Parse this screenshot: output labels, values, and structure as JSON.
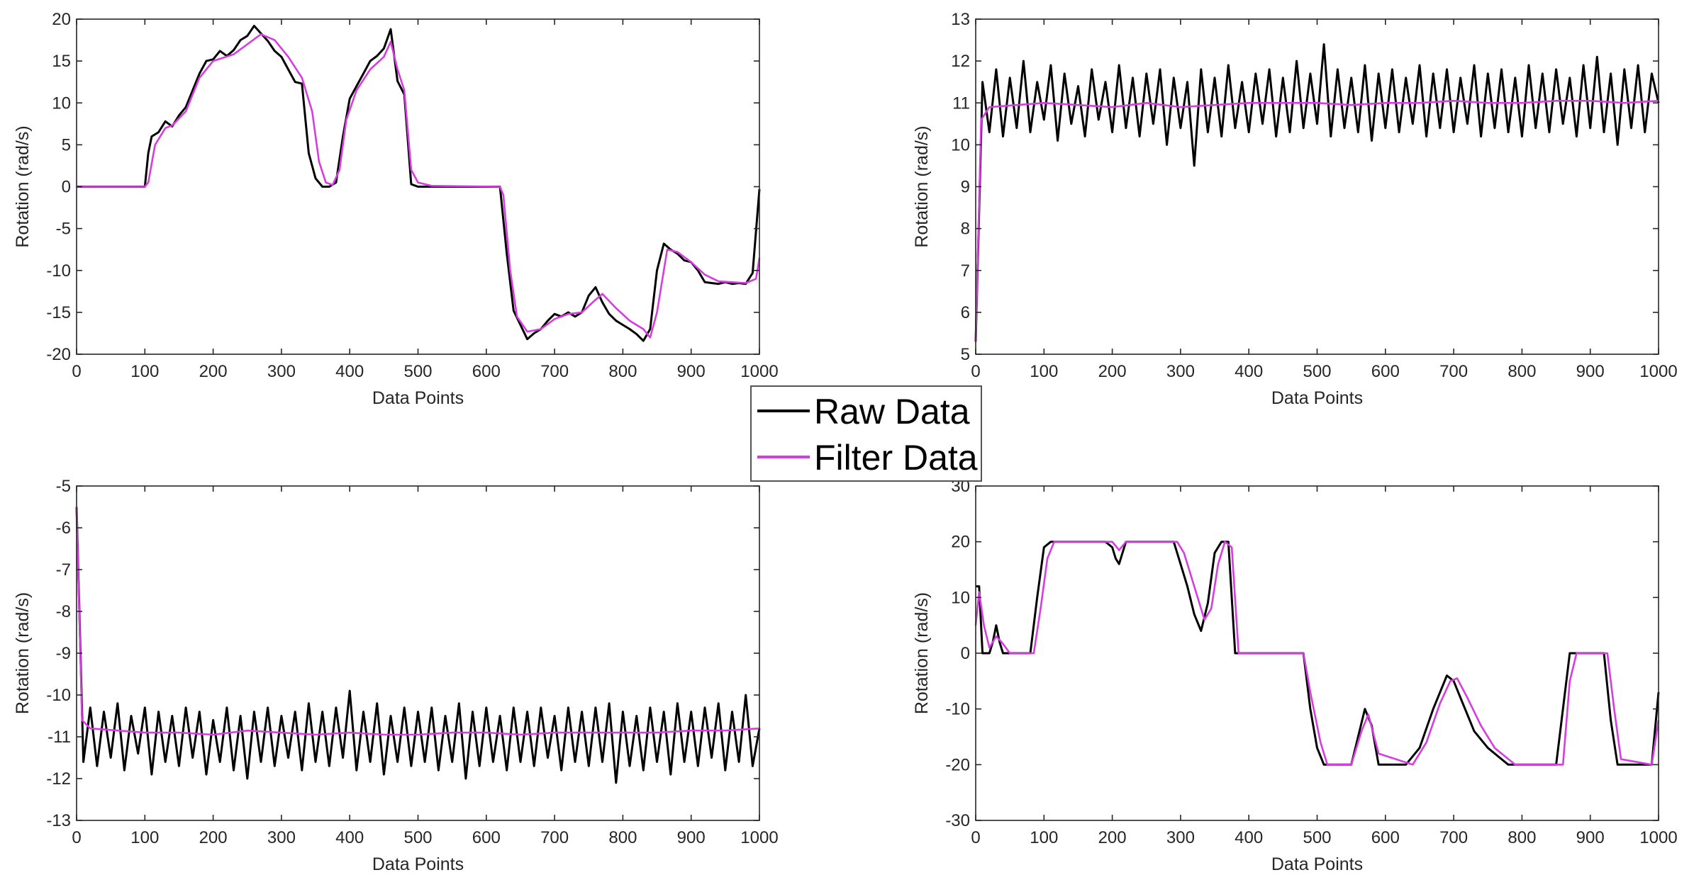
{
  "legend": {
    "entries": [
      {
        "label": "Raw Data",
        "color": "#000000"
      },
      {
        "label": "Filter Data",
        "color": "#d63ce0"
      }
    ],
    "placement": "center"
  },
  "chart_data": [
    {
      "type": "line",
      "xlabel": "Data Points",
      "ylabel": "Rotation (rad/s)",
      "xlim": [
        0,
        1000
      ],
      "ylim": [
        -20,
        20
      ],
      "xticks": [
        "0",
        "100",
        "200",
        "300",
        "400",
        "500",
        "600",
        "700",
        "800",
        "900",
        "1000"
      ],
      "yticks": [
        "-20",
        "-15",
        "-10",
        "-5",
        "0",
        "5",
        "10",
        "15",
        "20"
      ],
      "grid": false,
      "series": [
        {
          "name": "Raw Data",
          "color": "#000000",
          "x": [
            0,
            100,
            105,
            110,
            120,
            130,
            140,
            150,
            160,
            170,
            180,
            190,
            200,
            210,
            220,
            230,
            240,
            250,
            260,
            270,
            280,
            290,
            300,
            310,
            320,
            330,
            340,
            350,
            360,
            370,
            380,
            390,
            400,
            410,
            420,
            430,
            440,
            450,
            460,
            470,
            480,
            490,
            500,
            620,
            630,
            640,
            650,
            660,
            670,
            680,
            690,
            700,
            710,
            720,
            730,
            740,
            750,
            760,
            770,
            780,
            790,
            800,
            810,
            820,
            830,
            840,
            850,
            860,
            870,
            880,
            890,
            900,
            910,
            920,
            930,
            940,
            950,
            960,
            970,
            980,
            990,
            1000
          ],
          "y": [
            0,
            0,
            4,
            6,
            6.5,
            7.8,
            7.2,
            8.5,
            9.5,
            11.5,
            13.5,
            15,
            15.2,
            16.2,
            15.6,
            16.3,
            17.5,
            18,
            19.2,
            18.3,
            17.4,
            16.2,
            15.5,
            14,
            12.5,
            12.3,
            4,
            1,
            0,
            0,
            0.5,
            6,
            10.5,
            12,
            13.5,
            15,
            15.6,
            16.5,
            18.8,
            12.6,
            11,
            0.3,
            0,
            0,
            -8,
            -14.8,
            -16.5,
            -18.2,
            -17.5,
            -17,
            -16,
            -15.2,
            -15.5,
            -15,
            -15.5,
            -15,
            -13,
            -12,
            -13.8,
            -15.2,
            -16,
            -16.5,
            -17,
            -17.6,
            -18.4,
            -17,
            -10,
            -6.8,
            -7.5,
            -8,
            -8.8,
            -9,
            -10,
            -11.4,
            -11.5,
            -11.6,
            -11.4,
            -11.6,
            -11.5,
            -11.6,
            -10.3,
            -0.3
          ]
        },
        {
          "name": "Filter Data",
          "color": "#d63ce0",
          "x": [
            0,
            100,
            105,
            115,
            130,
            140,
            160,
            180,
            200,
            230,
            250,
            270,
            290,
            310,
            330,
            345,
            355,
            365,
            375,
            385,
            395,
            410,
            430,
            450,
            460,
            470,
            480,
            490,
            500,
            520,
            620,
            625,
            635,
            645,
            660,
            680,
            700,
            720,
            740,
            760,
            770,
            790,
            810,
            830,
            840,
            850,
            865,
            880,
            900,
            920,
            940,
            960,
            980,
            995,
            1000
          ],
          "y": [
            0,
            0,
            0.5,
            5,
            7,
            7.3,
            9,
            13,
            15,
            15.8,
            17,
            18.2,
            17.5,
            15.5,
            13,
            9,
            3,
            0.5,
            0.2,
            2,
            8,
            11.5,
            14,
            15.5,
            17.3,
            14,
            11.5,
            2,
            0.5,
            0.1,
            0,
            -1,
            -10,
            -15.5,
            -17.3,
            -17,
            -15.8,
            -15.2,
            -15,
            -13.5,
            -12.8,
            -14.5,
            -16,
            -17,
            -18,
            -15,
            -7.5,
            -7.8,
            -9,
            -10.5,
            -11.3,
            -11.4,
            -11.5,
            -11,
            -8.5
          ]
        }
      ]
    },
    {
      "type": "line",
      "xlabel": "Data Points",
      "ylabel": "Rotation (rad/s)",
      "xlim": [
        0,
        1000
      ],
      "ylim": [
        5,
        13
      ],
      "xticks": [
        "0",
        "100",
        "200",
        "300",
        "400",
        "500",
        "600",
        "700",
        "800",
        "900",
        "1000"
      ],
      "yticks": [
        "5",
        "6",
        "7",
        "8",
        "9",
        "10",
        "11",
        "12",
        "13"
      ],
      "grid": false,
      "series": [
        {
          "name": "Raw Data",
          "color": "#000000",
          "x_range": [
            0,
            1000
          ],
          "y": [
            5.3,
            11.5,
            10.3,
            11.8,
            10.2,
            11.6,
            10.4,
            12.0,
            10.3,
            11.5,
            10.6,
            11.9,
            10.1,
            11.7,
            10.5,
            11.4,
            10.2,
            11.8,
            10.6,
            11.5,
            10.3,
            11.9,
            10.4,
            11.6,
            10.2,
            11.7,
            10.5,
            11.8,
            10.0,
            11.6,
            10.4,
            11.5,
            9.5,
            11.8,
            10.3,
            11.6,
            10.2,
            11.9,
            10.4,
            11.5,
            10.3,
            11.7,
            10.5,
            11.8,
            10.2,
            11.6,
            10.3,
            12.0,
            10.4,
            11.7,
            10.5,
            12.4,
            10.2,
            11.8,
            10.4,
            11.6,
            10.3,
            11.9,
            10.1,
            11.7,
            10.4,
            11.8,
            10.3,
            11.6,
            10.5,
            11.9,
            10.2,
            11.7,
            10.4,
            11.8,
            10.3,
            11.6,
            10.5,
            11.9,
            10.2,
            11.7,
            10.4,
            11.8,
            10.3,
            11.6,
            10.2,
            11.9,
            10.4,
            11.7,
            10.3,
            11.8,
            10.5,
            11.6,
            10.2,
            11.9,
            10.4,
            12.1,
            10.3,
            11.7,
            10.0,
            11.8,
            10.4,
            11.9,
            10.3,
            11.7,
            11.0
          ]
        },
        {
          "name": "Filter Data",
          "color": "#d63ce0",
          "x": [
            0,
            8,
            20,
            100,
            150,
            200,
            250,
            300,
            350,
            400,
            450,
            500,
            550,
            600,
            650,
            700,
            750,
            800,
            850,
            900,
            950,
            1000
          ],
          "y": [
            5.3,
            10.6,
            10.9,
            11.0,
            10.95,
            10.9,
            11.0,
            10.9,
            10.95,
            11.0,
            11.0,
            11.0,
            10.95,
            11.0,
            11.0,
            11.05,
            11.0,
            11.0,
            11.05,
            11.05,
            11.0,
            11.05
          ]
        }
      ]
    },
    {
      "type": "line",
      "xlabel": "Data Points",
      "ylabel": "Rotation (rad/s)",
      "xlim": [
        0,
        1000
      ],
      "ylim": [
        -13,
        -5
      ],
      "xticks": [
        "0",
        "100",
        "200",
        "300",
        "400",
        "500",
        "600",
        "700",
        "800",
        "900",
        "1000"
      ],
      "yticks": [
        "-13",
        "-12",
        "-11",
        "-10",
        "-9",
        "-8",
        "-7",
        "-6",
        "-5"
      ],
      "grid": false,
      "series": [
        {
          "name": "Raw Data",
          "color": "#000000",
          "x_range": [
            0,
            1000
          ],
          "y": [
            -5.5,
            -11.6,
            -10.3,
            -11.7,
            -10.4,
            -11.5,
            -10.2,
            -11.8,
            -10.5,
            -11.4,
            -10.3,
            -11.9,
            -10.4,
            -11.6,
            -10.5,
            -11.7,
            -10.3,
            -11.5,
            -10.4,
            -11.9,
            -10.6,
            -11.6,
            -10.3,
            -11.8,
            -10.5,
            -12.0,
            -10.4,
            -11.6,
            -10.3,
            -11.7,
            -10.5,
            -11.5,
            -10.4,
            -11.8,
            -10.2,
            -11.6,
            -10.4,
            -11.7,
            -10.3,
            -11.5,
            -9.9,
            -11.8,
            -10.4,
            -11.6,
            -10.2,
            -11.9,
            -10.5,
            -11.6,
            -10.3,
            -11.7,
            -10.4,
            -11.6,
            -10.3,
            -11.8,
            -10.5,
            -11.6,
            -10.2,
            -12.0,
            -10.4,
            -11.7,
            -10.3,
            -11.6,
            -10.5,
            -11.8,
            -10.3,
            -11.6,
            -10.4,
            -11.7,
            -10.3,
            -11.5,
            -10.5,
            -11.8,
            -10.3,
            -11.6,
            -10.4,
            -11.7,
            -10.3,
            -11.6,
            -10.2,
            -12.1,
            -10.4,
            -11.7,
            -10.5,
            -11.8,
            -10.3,
            -11.6,
            -10.4,
            -11.9,
            -10.2,
            -11.6,
            -10.4,
            -11.7,
            -10.3,
            -11.5,
            -10.2,
            -11.8,
            -10.4,
            -11.6,
            -10.0,
            -11.7,
            -10.8
          ]
        },
        {
          "name": "Filter Data",
          "color": "#d63ce0",
          "x": [
            0,
            8,
            20,
            100,
            150,
            200,
            250,
            300,
            350,
            400,
            450,
            500,
            550,
            600,
            650,
            700,
            750,
            800,
            850,
            900,
            950,
            1000
          ],
          "y": [
            -5.5,
            -10.6,
            -10.8,
            -10.9,
            -10.9,
            -10.95,
            -10.85,
            -10.9,
            -10.95,
            -10.9,
            -10.95,
            -10.95,
            -10.9,
            -10.9,
            -10.95,
            -10.9,
            -10.9,
            -10.9,
            -10.9,
            -10.85,
            -10.85,
            -10.8
          ]
        }
      ]
    },
    {
      "type": "line",
      "xlabel": "Data Points",
      "ylabel": "Rotation (rad/s)",
      "xlim": [
        0,
        1000
      ],
      "ylim": [
        -30,
        30
      ],
      "xticks": [
        "0",
        "100",
        "200",
        "300",
        "400",
        "500",
        "600",
        "700",
        "800",
        "900",
        "1000"
      ],
      "yticks": [
        "-30",
        "-20",
        "-10",
        "0",
        "10",
        "20",
        "30"
      ],
      "grid": false,
      "series": [
        {
          "name": "Raw Data",
          "color": "#000000",
          "x": [
            0,
            5,
            10,
            20,
            25,
            30,
            35,
            40,
            80,
            90,
            100,
            110,
            190,
            200,
            205,
            210,
            215,
            220,
            290,
            300,
            310,
            320,
            330,
            340,
            350,
            360,
            370,
            380,
            480,
            490,
            500,
            510,
            550,
            560,
            570,
            580,
            590,
            630,
            650,
            670,
            690,
            700,
            710,
            730,
            750,
            770,
            780,
            850,
            860,
            870,
            920,
            930,
            940,
            990,
            1000
          ],
          "y": [
            12,
            12,
            0,
            0,
            2,
            5,
            2,
            0,
            0,
            10,
            19,
            20,
            20,
            19,
            17,
            16,
            18,
            20,
            20,
            16,
            12,
            7,
            4,
            9,
            18,
            20,
            20,
            0,
            0,
            -10,
            -17,
            -20,
            -20,
            -15,
            -10,
            -13,
            -20,
            -20,
            -17,
            -10,
            -4,
            -5,
            -8,
            -14,
            -17,
            -19,
            -20,
            -20,
            -10,
            0,
            0,
            -12,
            -20,
            -20,
            -7
          ]
        },
        {
          "name": "Filter Data",
          "color": "#d63ce0",
          "x": [
            0,
            5,
            12,
            20,
            30,
            38,
            50,
            85,
            95,
            105,
            115,
            190,
            200,
            210,
            220,
            295,
            305,
            320,
            335,
            345,
            355,
            365,
            375,
            385,
            480,
            490,
            505,
            515,
            550,
            565,
            575,
            590,
            640,
            660,
            680,
            695,
            705,
            720,
            740,
            760,
            790,
            860,
            870,
            880,
            925,
            935,
            945,
            990,
            1000
          ],
          "y": [
            5,
            11,
            5,
            1,
            3,
            2,
            0,
            0,
            8,
            17,
            20,
            20,
            20,
            18.5,
            20,
            20,
            18,
            12,
            6,
            8,
            16,
            20,
            19,
            0,
            0,
            -7,
            -16,
            -20,
            -20,
            -14,
            -11,
            -18,
            -20,
            -16,
            -9,
            -5,
            -4.5,
            -8,
            -13,
            -17,
            -20,
            -20,
            -5,
            0,
            0,
            -10,
            -19,
            -20,
            -12
          ]
        }
      ]
    }
  ]
}
